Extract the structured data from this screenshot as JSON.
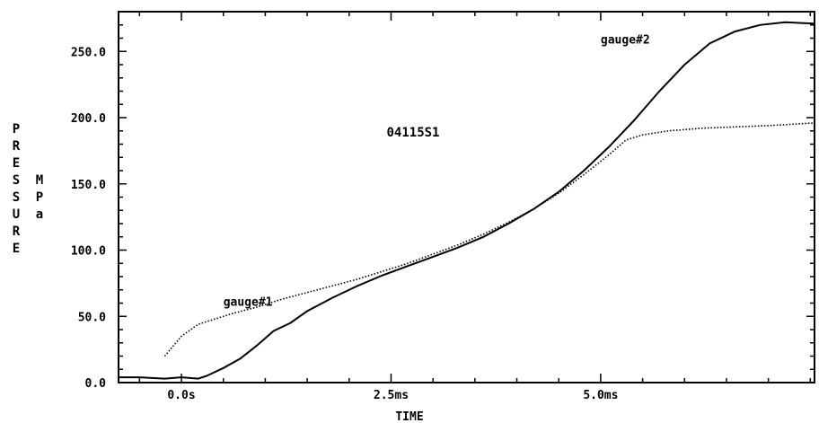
{
  "chart_data": {
    "type": "line",
    "title": "",
    "annotation": "04115S1",
    "xlabel": "TIME",
    "ylabel": "PRESSURE",
    "yunit": "MPa",
    "xlim": [
      -0.75,
      7.55
    ],
    "ylim": [
      0,
      280
    ],
    "x_ticks": [
      0.0,
      2.5,
      5.0
    ],
    "x_tick_labels": [
      "0.0s",
      "2.5ms",
      "5.0ms"
    ],
    "y_ticks": [
      0,
      50,
      100,
      150,
      200,
      250
    ],
    "y_tick_labels": [
      "0.0",
      "50.0",
      "100.0",
      "150.0",
      "200.0",
      "250.0"
    ],
    "grid": false,
    "legend": "inline labels",
    "series": [
      {
        "name": "gauge#1",
        "style": "dotted",
        "points": [
          [
            -0.2,
            20
          ],
          [
            0.0,
            35
          ],
          [
            0.2,
            44
          ],
          [
            0.4,
            48
          ],
          [
            0.6,
            52
          ],
          [
            0.9,
            57
          ],
          [
            1.2,
            63
          ],
          [
            1.5,
            68
          ],
          [
            1.8,
            73
          ],
          [
            2.1,
            78
          ],
          [
            2.4,
            84
          ],
          [
            2.7,
            90
          ],
          [
            3.0,
            97
          ],
          [
            3.3,
            104
          ],
          [
            3.6,
            112
          ],
          [
            3.9,
            121
          ],
          [
            4.2,
            131
          ],
          [
            4.5,
            143
          ],
          [
            4.8,
            157
          ],
          [
            5.1,
            172
          ],
          [
            5.3,
            183
          ],
          [
            5.5,
            187
          ],
          [
            5.8,
            190
          ],
          [
            6.2,
            192
          ],
          [
            6.6,
            193
          ],
          [
            7.0,
            194
          ],
          [
            7.55,
            196
          ]
        ]
      },
      {
        "name": "gauge#2",
        "style": "solid",
        "points": [
          [
            -0.75,
            4
          ],
          [
            -0.5,
            4
          ],
          [
            -0.2,
            3
          ],
          [
            0.0,
            4
          ],
          [
            0.2,
            3
          ],
          [
            0.3,
            5
          ],
          [
            0.5,
            11
          ],
          [
            0.7,
            18
          ],
          [
            0.9,
            28
          ],
          [
            1.1,
            39
          ],
          [
            1.3,
            45
          ],
          [
            1.5,
            54
          ],
          [
            1.8,
            64
          ],
          [
            2.1,
            73
          ],
          [
            2.4,
            81
          ],
          [
            2.7,
            88
          ],
          [
            3.0,
            95
          ],
          [
            3.3,
            102
          ],
          [
            3.6,
            110
          ],
          [
            3.9,
            120
          ],
          [
            4.2,
            131
          ],
          [
            4.5,
            144
          ],
          [
            4.8,
            160
          ],
          [
            5.1,
            178
          ],
          [
            5.4,
            198
          ],
          [
            5.7,
            220
          ],
          [
            6.0,
            240
          ],
          [
            6.3,
            256
          ],
          [
            6.6,
            265
          ],
          [
            6.9,
            270
          ],
          [
            7.2,
            272
          ],
          [
            7.55,
            271
          ]
        ]
      }
    ]
  }
}
